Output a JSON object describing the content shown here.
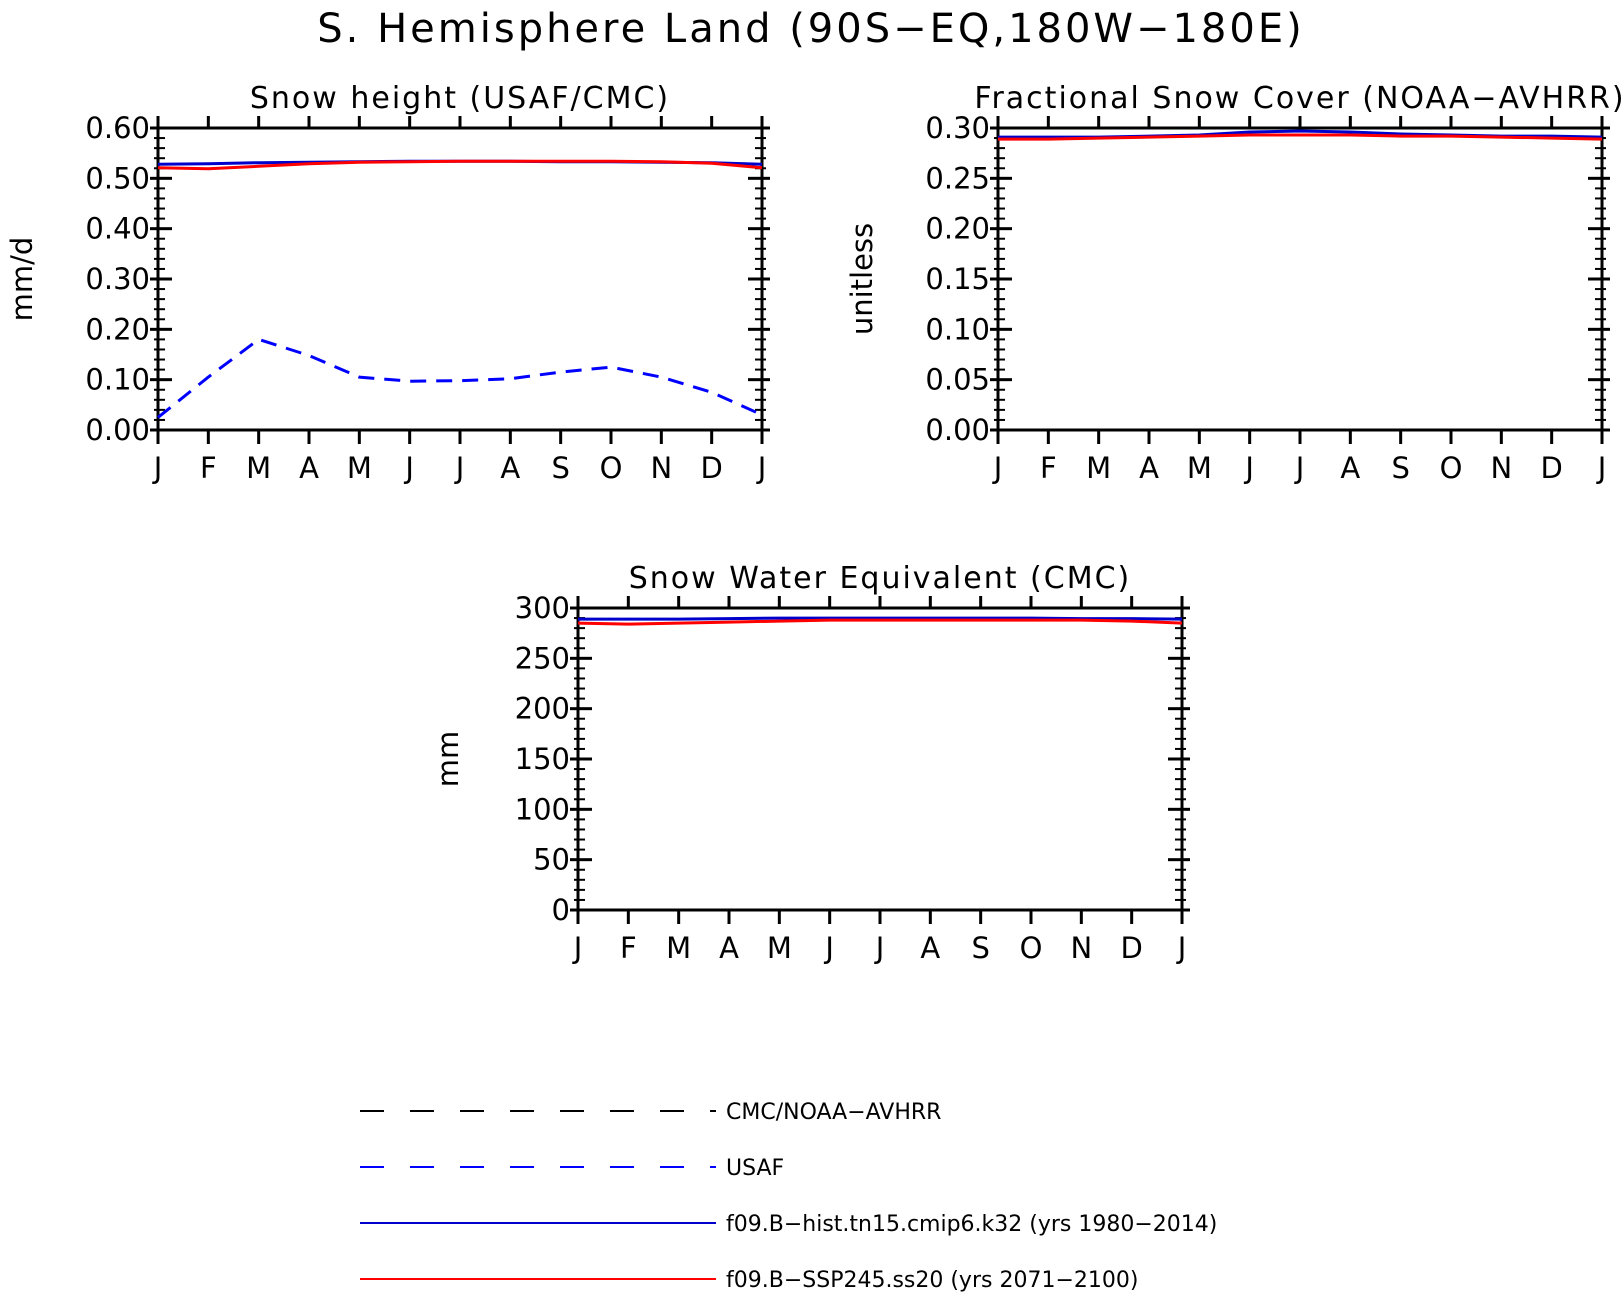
{
  "title": "S. Hemisphere Land (90S−EQ,180W−180E)",
  "colors": {
    "obs1": "#000000",
    "obs2": "#0000ff",
    "hist": "#0000cc",
    "ssp": "#ff0000"
  },
  "legend": {
    "items": [
      {
        "label": "CMC/NOAA−AVHRR",
        "color": "#000000",
        "dash": "dashed"
      },
      {
        "label": "USAF",
        "color": "#0000ff",
        "dash": "dashed"
      },
      {
        "label": "f09.B−hist.tn15.cmip6.k32 (yrs 1980−2014)",
        "color": "#0000cc",
        "dash": "solid"
      },
      {
        "label": "f09.B−SSP245.ss20 (yrs 2071−2100)",
        "color": "#ff0000",
        "dash": "solid"
      }
    ]
  },
  "chart_data": [
    {
      "type": "line",
      "title": "Snow height (USAF/CMC)",
      "ylabel": "mm/d",
      "xlabel": "",
      "categories": [
        "J",
        "F",
        "M",
        "A",
        "M",
        "J",
        "J",
        "A",
        "S",
        "O",
        "N",
        "D",
        "J"
      ],
      "yticks": [
        "0.00",
        "0.10",
        "0.20",
        "0.30",
        "0.40",
        "0.50",
        "0.60"
      ],
      "ylim": [
        0,
        0.6
      ],
      "grid": false,
      "series": [
        {
          "name": "USAF",
          "style": "dashed",
          "color": "#0000ff",
          "values": [
            0.025,
            0.105,
            0.18,
            0.148,
            0.105,
            0.097,
            0.098,
            0.102,
            0.115,
            0.125,
            0.105,
            0.075,
            0.03
          ]
        },
        {
          "name": "f09.B−hist.tn15.cmip6.k32 (yrs 1980−2014)",
          "style": "solid",
          "color": "#0000cc",
          "values": [
            0.528,
            0.529,
            0.531,
            0.532,
            0.533,
            0.534,
            0.534,
            0.534,
            0.533,
            0.533,
            0.532,
            0.531,
            0.528
          ]
        },
        {
          "name": "f09.B−SSP245.ss20 (yrs 2071−2100)",
          "style": "solid",
          "color": "#ff0000",
          "values": [
            0.521,
            0.519,
            0.524,
            0.529,
            0.532,
            0.533,
            0.534,
            0.534,
            0.534,
            0.534,
            0.533,
            0.53,
            0.521
          ]
        }
      ]
    },
    {
      "type": "line",
      "title": "Fractional Snow Cover (NOAA−AVHRR)",
      "ylabel": "unitless",
      "xlabel": "",
      "categories": [
        "J",
        "F",
        "M",
        "A",
        "M",
        "J",
        "J",
        "A",
        "S",
        "O",
        "N",
        "D",
        "J"
      ],
      "yticks": [
        "0.00",
        "0.05",
        "0.10",
        "0.15",
        "0.20",
        "0.25",
        "0.30"
      ],
      "ylim": [
        0,
        0.3
      ],
      "grid": false,
      "series": [
        {
          "name": "f09.B−hist.tn15.cmip6.k32 (yrs 1980−2014)",
          "style": "solid",
          "color": "#0000cc",
          "values": [
            0.291,
            0.291,
            0.291,
            0.292,
            0.293,
            0.296,
            0.297,
            0.296,
            0.294,
            0.293,
            0.292,
            0.292,
            0.291
          ]
        },
        {
          "name": "f09.B−SSP245.ss20 (yrs 2071−2100)",
          "style": "solid",
          "color": "#ff0000",
          "values": [
            0.289,
            0.289,
            0.29,
            0.291,
            0.292,
            0.293,
            0.293,
            0.293,
            0.292,
            0.292,
            0.291,
            0.29,
            0.289
          ]
        }
      ]
    },
    {
      "type": "line",
      "title": "Snow Water Equivalent (CMC)",
      "ylabel": "mm",
      "xlabel": "",
      "categories": [
        "J",
        "F",
        "M",
        "A",
        "M",
        "J",
        "J",
        "A",
        "S",
        "O",
        "N",
        "D",
        "J"
      ],
      "yticks": [
        "0",
        "50",
        "100",
        "150",
        "200",
        "250",
        "300"
      ],
      "ylim": [
        0,
        300
      ],
      "grid": false,
      "series": [
        {
          "name": "f09.B−hist.tn15.cmip6.k32 (yrs 1980−2014)",
          "style": "solid",
          "color": "#0000cc",
          "values": [
            289,
            289,
            289,
            289.5,
            290,
            290,
            290,
            290,
            290,
            290,
            289.5,
            289.5,
            289
          ]
        },
        {
          "name": "f09.B−SSP245.ss20 (yrs 2071−2100)",
          "style": "solid",
          "color": "#ff0000",
          "values": [
            285,
            284,
            285,
            286,
            287,
            288,
            288,
            288,
            288,
            288,
            288,
            287,
            285
          ]
        }
      ]
    }
  ]
}
